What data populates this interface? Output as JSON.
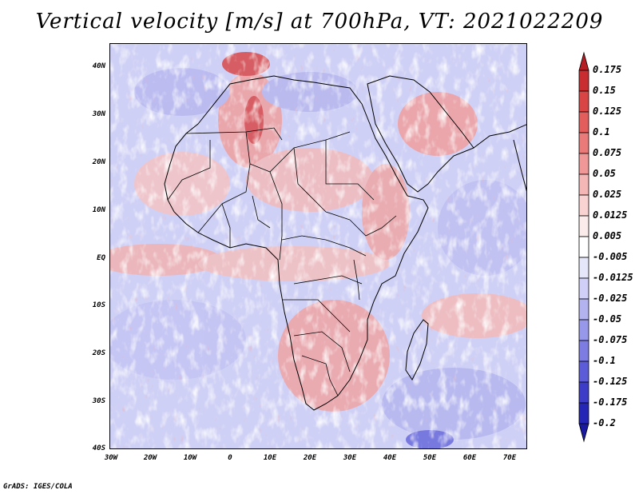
{
  "title": "Vertical velocity [m/s] at 700hPa, VT: 2021022209",
  "credit": "GrADS: IGES/COLA",
  "map": {
    "lat_labels": [
      "40N",
      "30N",
      "20N",
      "10N",
      "EQ",
      "10S",
      "20S",
      "30S",
      "40S"
    ],
    "lon_labels": [
      "30W",
      "20W",
      "10W",
      "0",
      "10E",
      "20E",
      "30E",
      "40E",
      "50E",
      "60E",
      "70E"
    ],
    "lat_range": [
      -40,
      45
    ],
    "lon_range": [
      -30,
      75
    ]
  },
  "colorbar": {
    "labels": [
      "0.175",
      "0.15",
      "0.125",
      "0.1",
      "0.075",
      "0.05",
      "0.025",
      "0.0125",
      "0.005",
      "-0.005",
      "-0.0125",
      "-0.025",
      "-0.05",
      "-0.075",
      "-0.1",
      "-0.125",
      "-0.175",
      "-0.2"
    ],
    "colors": [
      "#b41e24",
      "#c92d2f",
      "#d94545",
      "#e35d5d",
      "#ea7a7a",
      "#f09898",
      "#f5b6b6",
      "#f9d2d2",
      "#fcebeb",
      "#ffffff",
      "#e6e6fb",
      "#cfcff7",
      "#b3b3f0",
      "#9898ea",
      "#7c7ce2",
      "#5c5cd8",
      "#3c3cc9",
      "#2626b6",
      "#1a1aa0"
    ]
  },
  "colors": {
    "positive": "#d94545",
    "negative": "#5c5cd8"
  }
}
